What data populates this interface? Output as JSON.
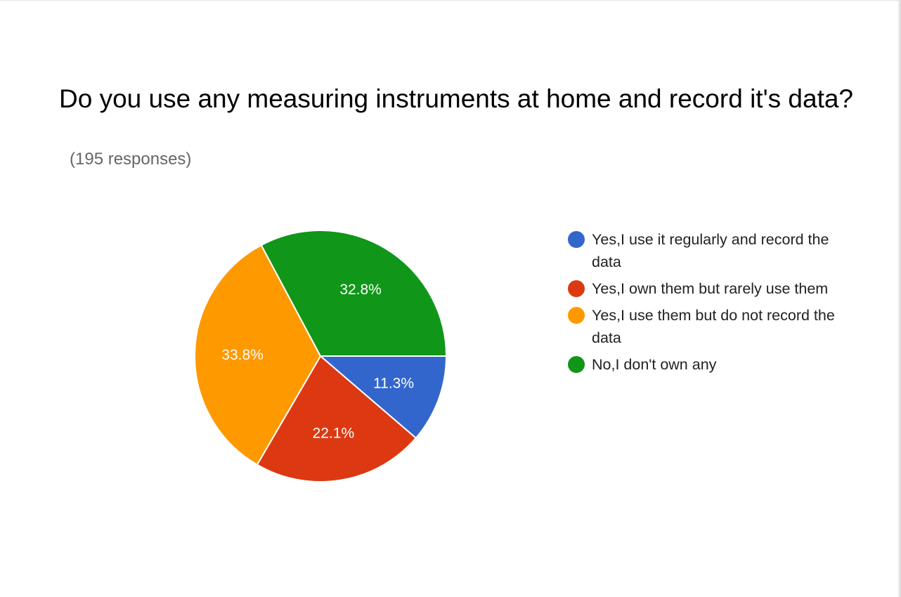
{
  "chart_data": {
    "type": "pie",
    "title": "Do you use any measuring instruments at home and record it's data?",
    "subtitle": "(195 responses)",
    "legend_position": "right",
    "series": [
      {
        "name": "Yes,I use it regularly and record the data",
        "value": 11.3,
        "label": "11.3%",
        "color": "#3366cc"
      },
      {
        "name": "Yes,I own them but rarely use them",
        "value": 22.1,
        "label": "22.1%",
        "color": "#dc3912"
      },
      {
        "name": "Yes,I use them but do not record the data",
        "value": 33.8,
        "label": "33.8%",
        "color": "#ff9900"
      },
      {
        "name": "No,I don't own any",
        "value": 32.8,
        "label": "32.8%",
        "color": "#109618"
      }
    ]
  }
}
